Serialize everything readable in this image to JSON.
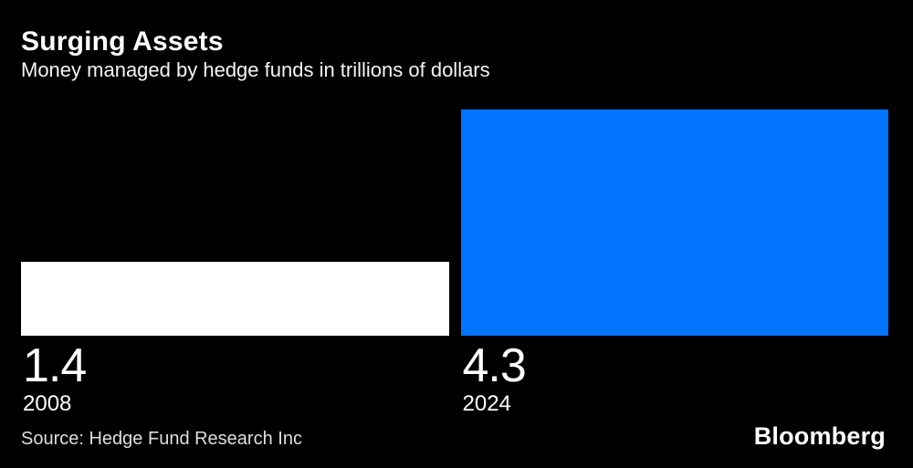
{
  "chart_data": {
    "type": "bar",
    "title": "Surging Assets",
    "subtitle": "Money managed by hedge funds in trillions of dollars",
    "categories": [
      "2008",
      "2024"
    ],
    "values": [
      1.4,
      4.3
    ],
    "bar_colors": [
      "#ffffff",
      "#0073ff"
    ],
    "ylim": [
      0,
      4.3
    ],
    "grid": false,
    "legend": "none",
    "orientation": "vertical-columns",
    "value_labels_shown": true,
    "value_label_position": "below-bar"
  },
  "footer": {
    "source": "Source: Hedge Fund Research Inc",
    "brand": "Bloomberg"
  },
  "colors": {
    "background": "#000000",
    "title_text": "#ffffff",
    "subtitle_text": "#f5f5f5",
    "source_text": "#dedede",
    "accent_blue": "#0073ff",
    "bar_white": "#ffffff"
  }
}
